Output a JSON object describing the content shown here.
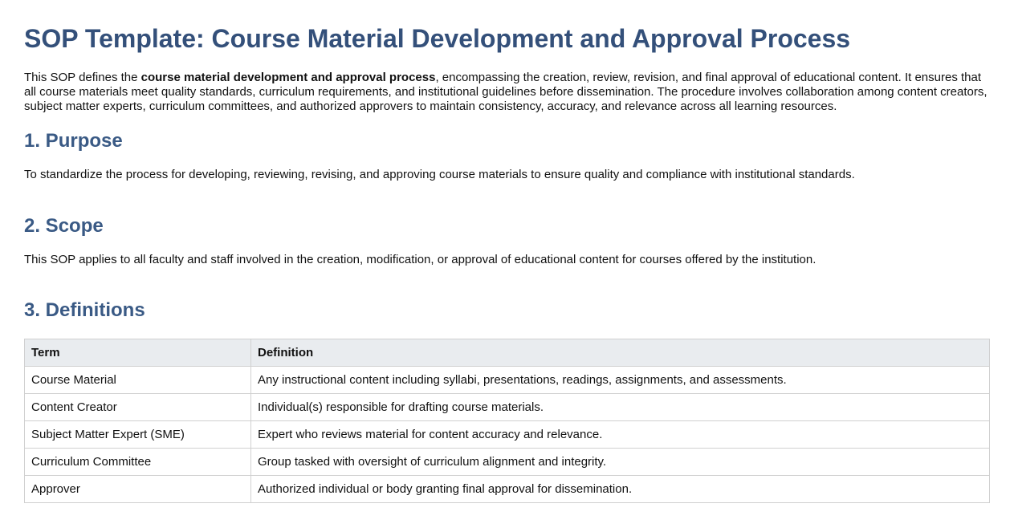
{
  "header": {
    "title": "SOP Template: Course Material Development and Approval Process"
  },
  "intro": {
    "before": "This SOP defines the ",
    "bold": "course material development and approval process",
    "after": ", encompassing the creation, review, revision, and final approval of educational content. It ensures that all course materials meet quality standards, curriculum requirements, and institutional guidelines before dissemination. The procedure involves collaboration among content creators, subject matter experts, curriculum committees, and authorized approvers to maintain consistency, accuracy, and relevance across all learning resources."
  },
  "sections": [
    {
      "heading": "1. Purpose",
      "text": "To standardize the process for developing, reviewing, revising, and approving course materials to ensure quality and compliance with institutional standards."
    },
    {
      "heading": "2. Scope",
      "text": "This SOP applies to all faculty and staff involved in the creation, modification, or approval of educational content for courses offered by the institution."
    },
    {
      "heading": "3. Definitions"
    }
  ],
  "table": {
    "header": [
      "Term",
      "Definition"
    ],
    "rows": [
      [
        "Course Material",
        "Any instructional content including syllabi, presentations, readings, assignments, and assessments."
      ],
      [
        "Content Creator",
        "Individual(s) responsible for drafting course materials."
      ],
      [
        "Subject Matter Expert (SME)",
        "Expert who reviews material for content accuracy and relevance."
      ],
      [
        "Curriculum Committee",
        "Group tasked with oversight of curriculum alignment and integrity."
      ],
      [
        "Approver",
        "Authorized individual or body granting final approval for dissemination."
      ]
    ]
  }
}
